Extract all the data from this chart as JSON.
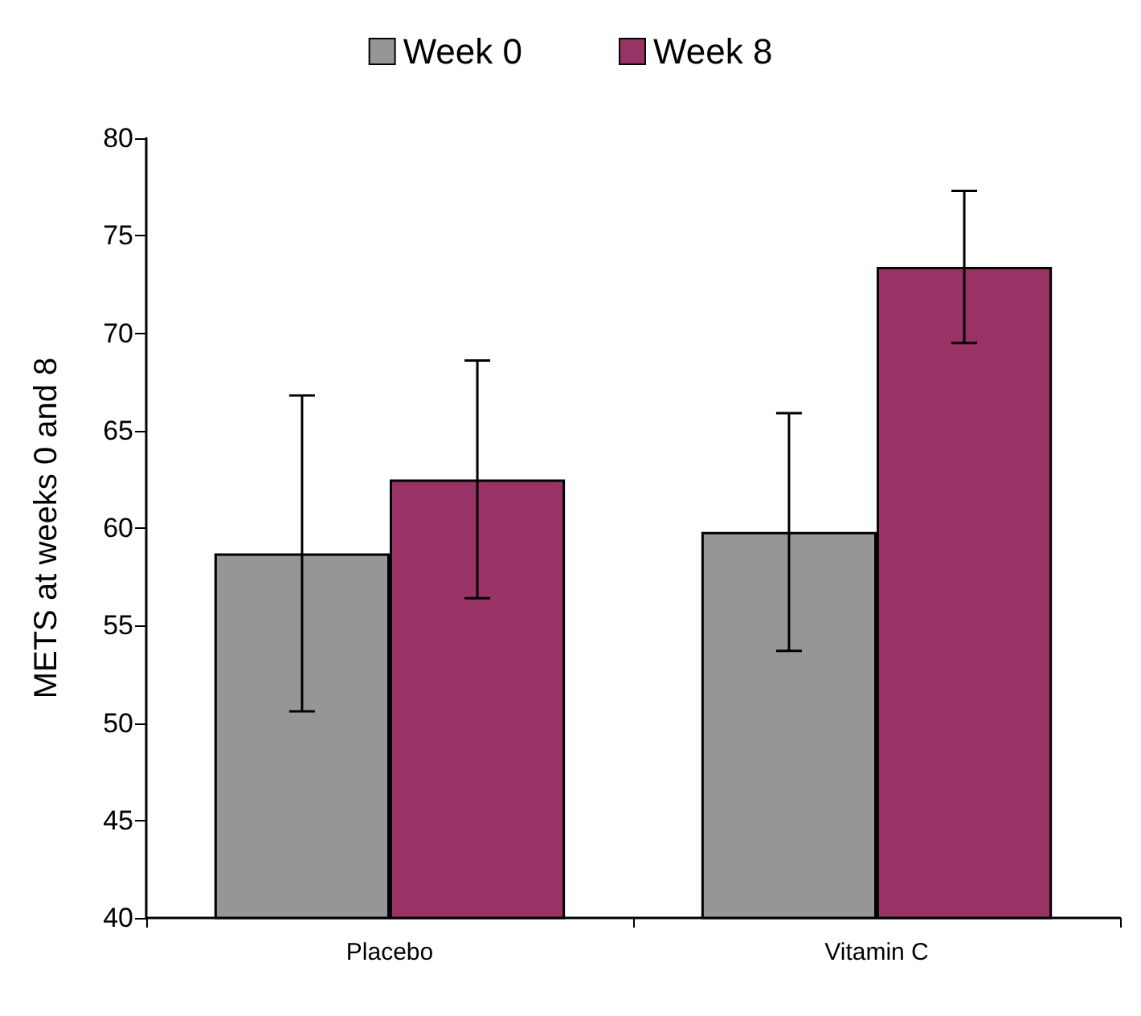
{
  "chart_data": {
    "type": "bar",
    "ylabel": "METS at weeks 0 and 8",
    "categories": [
      "Placebo",
      "Vitamin C"
    ],
    "series": [
      {
        "name": "Week 0",
        "color": "#969696",
        "values": [
          58.7,
          59.8
        ],
        "errors": [
          8.1,
          6.1
        ]
      },
      {
        "name": "Week 8",
        "color": "#993366",
        "values": [
          62.5,
          73.4
        ],
        "errors": [
          6.1,
          3.9
        ]
      }
    ],
    "ylim": [
      40,
      80
    ],
    "yticks": [
      40,
      45,
      50,
      55,
      60,
      65,
      70,
      75,
      80
    ],
    "grid": false,
    "legend": "top"
  }
}
